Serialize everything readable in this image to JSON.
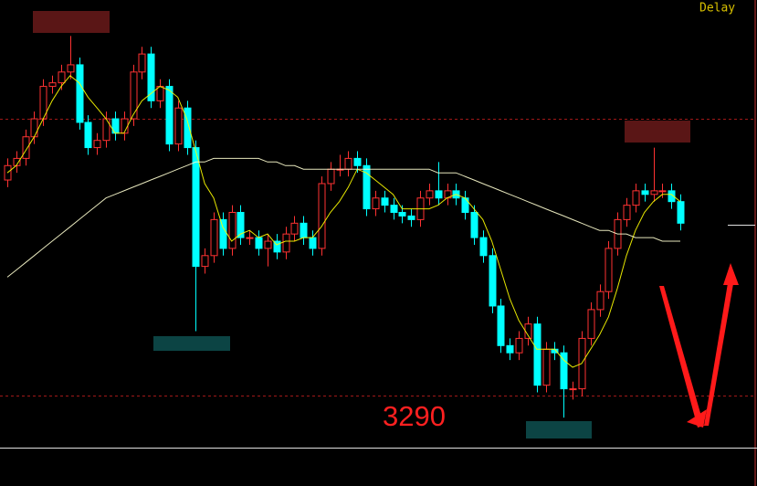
{
  "chart_data": {
    "type": "candlestick",
    "status": "Delay",
    "annotation": "3290",
    "ylim": [
      3265,
      3400
    ],
    "open": [
      3350,
      3354,
      3356,
      3362,
      3367,
      3376,
      3377,
      3380,
      3382,
      3366,
      3359,
      3361,
      3367,
      3363,
      3367,
      3380,
      3385,
      3372,
      3376,
      3360,
      3370,
      3359,
      3326,
      3329,
      3339,
      3331,
      3341,
      3334,
      3334,
      3331,
      3333,
      3330,
      3335,
      3338,
      3334,
      3331,
      3349,
      3353,
      3353,
      3356,
      3354,
      3342,
      3345,
      3343,
      3341,
      3340,
      3339,
      3345,
      3347,
      3345,
      3347,
      3345,
      3341,
      3334,
      3329,
      3315,
      3304,
      3302,
      3306,
      3310,
      3293,
      3303,
      3302,
      3292,
      3292,
      3306,
      3314,
      3319,
      3331,
      3339,
      3343,
      3347,
      3346,
      3347,
      3347,
      3344
    ],
    "high": [
      3356,
      3358,
      3364,
      3369,
      3378,
      3379,
      3382,
      3390,
      3384,
      3368,
      3363,
      3369,
      3369,
      3369,
      3382,
      3387,
      3387,
      3378,
      3378,
      3372,
      3372,
      3361,
      3331,
      3341,
      3341,
      3343,
      3343,
      3336,
      3336,
      3335,
      3335,
      3337,
      3340,
      3340,
      3336,
      3351,
      3355,
      3357,
      3358,
      3358,
      3356,
      3347,
      3347,
      3345,
      3343,
      3342,
      3347,
      3349,
      3355,
      3349,
      3349,
      3347,
      3343,
      3336,
      3331,
      3317,
      3306,
      3308,
      3312,
      3312,
      3305,
      3305,
      3304,
      3294,
      3308,
      3316,
      3321,
      3333,
      3341,
      3345,
      3349,
      3349,
      3359,
      3349,
      3349,
      3346
    ],
    "low": [
      3348,
      3352,
      3354,
      3360,
      3365,
      3374,
      3375,
      3378,
      3364,
      3357,
      3357,
      3359,
      3361,
      3361,
      3365,
      3378,
      3370,
      3370,
      3358,
      3358,
      3357,
      3308,
      3324,
      3327,
      3329,
      3329,
      3332,
      3332,
      3329,
      3326,
      3328,
      3328,
      3333,
      3332,
      3329,
      3329,
      3347,
      3351,
      3351,
      3352,
      3340,
      3340,
      3341,
      3339,
      3338,
      3337,
      3337,
      3343,
      3343,
      3343,
      3343,
      3339,
      3332,
      3327,
      3313,
      3302,
      3300,
      3300,
      3304,
      3291,
      3291,
      3300,
      3284,
      3289,
      3290,
      3304,
      3312,
      3317,
      3329,
      3337,
      3341,
      3344,
      3344,
      3345,
      3342,
      3336
    ],
    "close": [
      3354,
      3356,
      3362,
      3367,
      3376,
      3377,
      3380,
      3382,
      3366,
      3359,
      3361,
      3367,
      3363,
      3367,
      3380,
      3385,
      3372,
      3376,
      3360,
      3370,
      3359,
      3326,
      3329,
      3339,
      3331,
      3341,
      3334,
      3334,
      3331,
      3333,
      3330,
      3335,
      3338,
      3334,
      3331,
      3349,
      3353,
      3353,
      3356,
      3354,
      3342,
      3345,
      3343,
      3341,
      3340,
      3339,
      3345,
      3347,
      3345,
      3347,
      3345,
      3341,
      3334,
      3329,
      3315,
      3304,
      3302,
      3306,
      3310,
      3293,
      3303,
      3302,
      3292,
      3292,
      3306,
      3314,
      3319,
      3331,
      3339,
      3343,
      3347,
      3346,
      3347,
      3347,
      3344,
      3338
    ],
    "up_color": "#ff3232",
    "down_color": "#00ffff",
    "lines": [
      {
        "color": "#ffff00",
        "values": [
          3352,
          3354,
          3358,
          3362,
          3367,
          3372,
          3376,
          3379,
          3377,
          3373,
          3370,
          3367,
          3363,
          3363,
          3368,
          3372,
          3374,
          3376,
          3375,
          3373,
          3367,
          3358,
          3349,
          3345,
          3337,
          3333,
          3335,
          3336,
          3334,
          3335,
          3332,
          3333,
          3333,
          3334,
          3334,
          3337,
          3341,
          3344,
          3348,
          3353,
          3352,
          3350,
          3348,
          3346,
          3342,
          3342,
          3342,
          3342,
          3343,
          3345,
          3346,
          3345,
          3342,
          3339,
          3333,
          3325,
          3317,
          3311,
          3307,
          3303,
          3303,
          3303,
          3300,
          3298,
          3299,
          3303,
          3307,
          3312,
          3320,
          3329,
          3336,
          3341,
          3344,
          3346,
          3346,
          3344
        ]
      },
      {
        "color": "#ffffd0",
        "values": [
          3323,
          3325,
          3327,
          3329,
          3331,
          3333,
          3335,
          3337,
          3339,
          3341,
          3343,
          3345,
          3346,
          3347,
          3348,
          3349,
          3350,
          3351,
          3352,
          3353,
          3354,
          3355,
          3355,
          3356,
          3356,
          3356,
          3356,
          3356,
          3356,
          3355,
          3355,
          3354,
          3354,
          3353,
          3353,
          3353,
          3353,
          3353,
          3353,
          3353,
          3353,
          3353,
          3353,
          3353,
          3353,
          3353,
          3353,
          3353,
          3352,
          3352,
          3352,
          3351,
          3350,
          3349,
          3348,
          3347,
          3346,
          3345,
          3344,
          3343,
          3342,
          3341,
          3340,
          3339,
          3338,
          3337,
          3336,
          3336,
          3335,
          3335,
          3334,
          3334,
          3334,
          3333,
          3333,
          3333
        ]
      }
    ],
    "reference_lines": [
      3367,
      3290
    ],
    "reference_color": "#a01818"
  }
}
